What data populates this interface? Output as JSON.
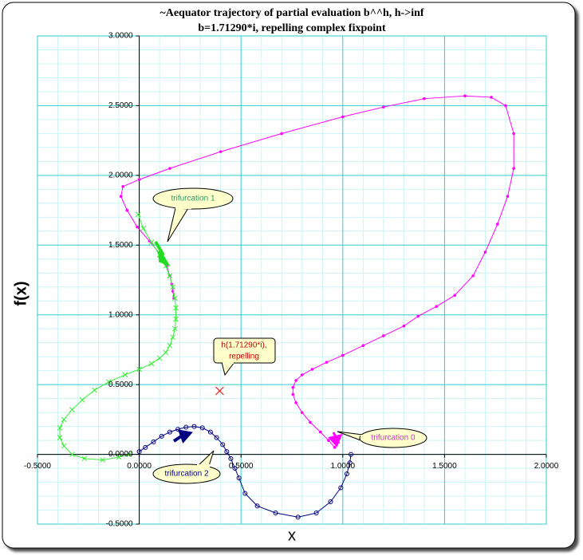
{
  "chart_data": {
    "type": "scatter",
    "title": "~Aequator trajectory of partial evaluation b^^h, h->inf",
    "subtitle": "b=1.71290*i, repelling complex fixpoint",
    "xlabel": "x",
    "ylabel": "f(x)",
    "xlim": [
      -0.5,
      2.0
    ],
    "ylim": [
      -0.5,
      3.0
    ],
    "xticks": [
      {
        "value": -0.5,
        "label": "-0.5000"
      },
      {
        "value": 0,
        "label": "0.0000"
      },
      {
        "value": 0.5,
        "label": "0.5000"
      },
      {
        "value": 1.0,
        "label": "1.0000"
      },
      {
        "value": 1.5,
        "label": "1.5000"
      },
      {
        "value": 2.0,
        "label": "2.0000"
      }
    ],
    "yticks": [
      {
        "value": -0.5,
        "label": "-0.5000"
      },
      {
        "value": 0,
        "label": "0.0000"
      },
      {
        "value": 0.5,
        "label": "0.5000"
      },
      {
        "value": 1.0,
        "label": "1.0000"
      },
      {
        "value": 1.5,
        "label": "1.5000"
      },
      {
        "value": 2.0,
        "label": "2.0000"
      },
      {
        "value": 2.5,
        "label": "2.5000"
      },
      {
        "value": 3.0,
        "label": "3.0000"
      }
    ],
    "xminorticks": [
      -0.4,
      -0.3,
      -0.2,
      -0.1,
      0.1,
      0.2,
      0.3,
      0.4,
      0.6,
      0.7,
      0.8,
      0.9,
      1.1,
      1.2,
      1.3,
      1.4,
      1.6,
      1.7,
      1.8,
      1.9
    ],
    "yminorticks": [
      -0.4,
      -0.3,
      -0.2,
      -0.1,
      0.1,
      0.2,
      0.3,
      0.4,
      0.6,
      0.7,
      0.8,
      0.9,
      1.1,
      1.2,
      1.3,
      1.4,
      1.6,
      1.7,
      1.8,
      1.9,
      2.1,
      2.2,
      2.3,
      2.4,
      2.6,
      2.7,
      2.8,
      2.9
    ],
    "grid": true,
    "grid_color": "#33cccc",
    "minor_grid_color": "#ccf5f5",
    "series": [
      {
        "color": "#ff00ff",
        "marker": "dot",
        "x": [
          0.96,
          0.93,
          0.89,
          0.84,
          0.8,
          0.77,
          0.755,
          0.755,
          0.77,
          0.8,
          0.85,
          0.92,
          1.0,
          1.1,
          1.2,
          1.3,
          1.37,
          1.46,
          1.55,
          1.64,
          1.7,
          1.76,
          1.81,
          1.84,
          1.84,
          1.8,
          1.73,
          1.6,
          1.4,
          1.2,
          1.0,
          0.7,
          0.4,
          0.15,
          0.0,
          -0.08,
          -0.09,
          -0.06,
          -0.01,
          0.05,
          0.1,
          0.135,
          0.15,
          0.16,
          0.165,
          0.17
        ],
        "y": [
          0.05,
          0.1,
          0.16,
          0.23,
          0.3,
          0.37,
          0.43,
          0.48,
          0.53,
          0.57,
          0.61,
          0.66,
          0.71,
          0.78,
          0.85,
          0.92,
          0.99,
          1.06,
          1.14,
          1.28,
          1.45,
          1.65,
          1.85,
          2.05,
          2.3,
          2.5,
          2.56,
          2.57,
          2.55,
          2.49,
          2.42,
          2.3,
          2.17,
          2.05,
          1.97,
          1.92,
          1.85,
          1.75,
          1.63,
          1.53,
          1.44,
          1.35,
          1.28,
          1.22,
          1.17,
          1.12
        ]
      },
      {
        "color": "#33ee33",
        "marker": "x",
        "x": [
          -0.005,
          0.02,
          0.06,
          0.1,
          0.13,
          0.15,
          0.165,
          0.175,
          0.18,
          0.18,
          0.175,
          0.165,
          0.15,
          0.13,
          0.1,
          0.06,
          0.0,
          -0.07,
          -0.15,
          -0.22,
          -0.28,
          -0.33,
          -0.37,
          -0.39,
          -0.39,
          -0.37,
          -0.33,
          -0.27,
          -0.18,
          -0.1,
          -0.05
        ],
        "y": [
          1.72,
          1.62,
          1.52,
          1.43,
          1.35,
          1.28,
          1.2,
          1.12,
          1.05,
          0.97,
          0.9,
          0.84,
          0.78,
          0.73,
          0.69,
          0.65,
          0.61,
          0.57,
          0.52,
          0.46,
          0.39,
          0.32,
          0.25,
          0.19,
          0.12,
          0.06,
          0.0,
          -0.03,
          -0.04,
          -0.02,
          0.0
        ]
      },
      {
        "color": "#000080",
        "marker": "circle",
        "x": [
          0.0,
          0.03,
          0.07,
          0.11,
          0.15,
          0.19,
          0.23,
          0.27,
          0.31,
          0.35,
          0.38,
          0.41,
          0.43,
          0.45,
          0.47,
          0.49,
          0.52,
          0.58,
          0.67,
          0.78,
          0.87,
          0.94,
          0.99,
          1.02,
          1.035,
          1.04
        ],
        "y": [
          0.02,
          0.05,
          0.09,
          0.13,
          0.16,
          0.18,
          0.195,
          0.2,
          0.19,
          0.16,
          0.12,
          0.07,
          0.02,
          -0.03,
          -0.1,
          -0.17,
          -0.28,
          -0.37,
          -0.42,
          -0.45,
          -0.42,
          -0.34,
          -0.24,
          -0.14,
          -0.06,
          0.0
        ]
      }
    ],
    "fixpoint": {
      "x": 0.395,
      "y": 0.455,
      "color": "#ff0000"
    },
    "annotations": {
      "trifurcation_1": "trifurcation 1",
      "fixpoint": [
        "h(1.71290*i),",
        "repelling"
      ],
      "trifurcation_0": "trifurcation 0",
      "trifurcation_2": "trifurcation 2"
    }
  }
}
